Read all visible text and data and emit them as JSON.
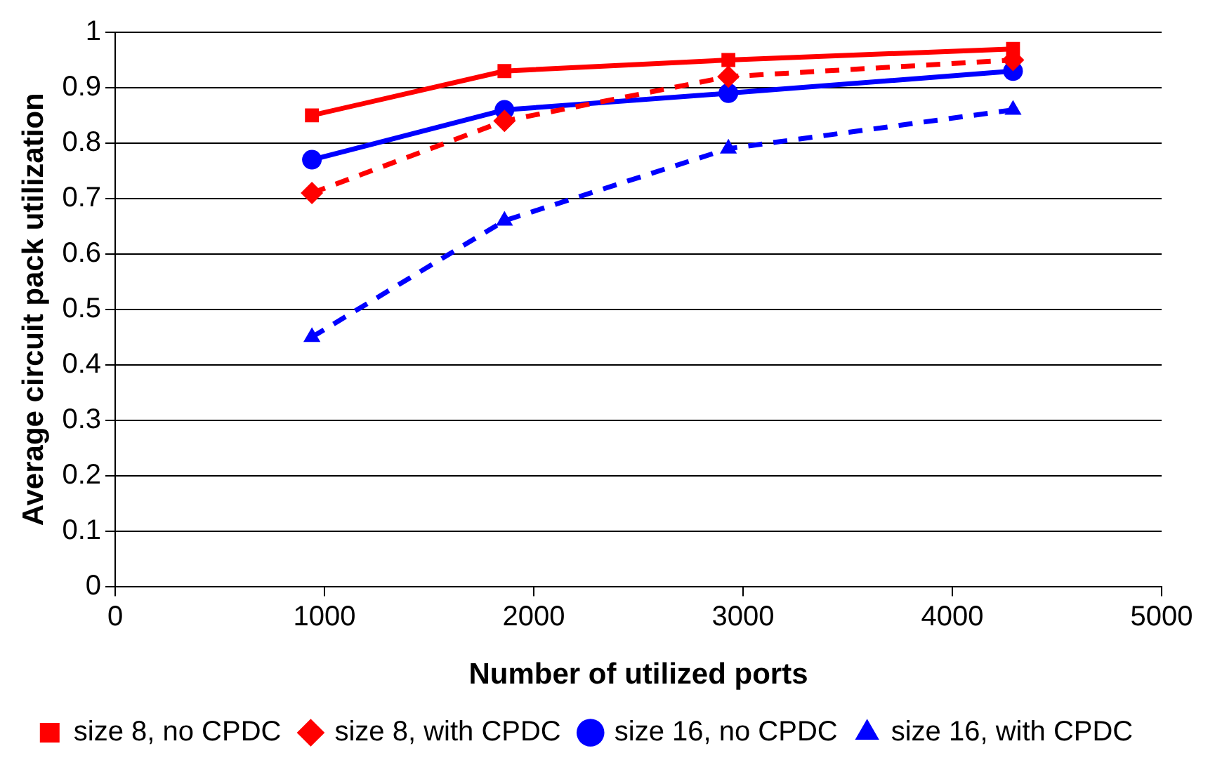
{
  "chart_data": {
    "type": "line",
    "xlabel": "Number of utilized ports",
    "ylabel": "Average circuit pack utilization",
    "x": [
      940,
      1860,
      2930,
      4290
    ],
    "series": [
      {
        "name": "size 8, no CPDC",
        "color": "#ff0000",
        "values": [
          0.85,
          0.93,
          0.95,
          0.97
        ],
        "marker": "square",
        "line_style": "solid"
      },
      {
        "name": "size 8, with CPDC",
        "color": "#ff0000",
        "values": [
          0.71,
          0.84,
          0.92,
          0.95
        ],
        "marker": "diamond",
        "line_style": "dashed"
      },
      {
        "name": "size 16, no CPDC",
        "color": "#0000ff",
        "values": [
          0.77,
          0.86,
          0.89,
          0.93
        ],
        "marker": "circle",
        "line_style": "solid"
      },
      {
        "name": "size 16, with CPDC",
        "color": "#0000ff",
        "values": [
          0.45,
          0.66,
          0.79,
          0.86
        ],
        "marker": "triangle",
        "line_style": "dashed"
      }
    ],
    "xlim": [
      0,
      5000
    ],
    "xticks": [
      0,
      1000,
      2000,
      3000,
      4000,
      5000
    ],
    "ylim": [
      0,
      1
    ],
    "yticks": [
      0,
      0.1,
      0.2,
      0.3,
      0.4,
      0.5,
      0.6,
      0.7,
      0.8,
      0.9,
      1
    ],
    "grid": "y",
    "legend": "bottom"
  }
}
